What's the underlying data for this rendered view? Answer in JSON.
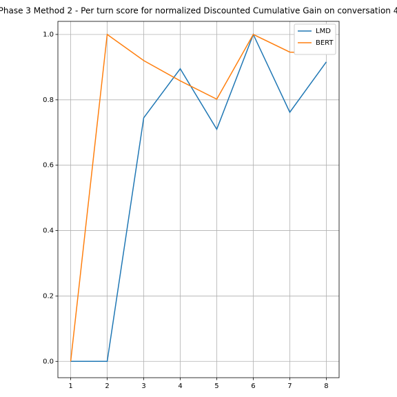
{
  "chart_data": {
    "type": "line",
    "title": "Phase 3 Method 2 - Per turn score for normalized Discounted Cumulative Gain on conversation 4",
    "x": [
      1,
      2,
      3,
      4,
      5,
      6,
      7,
      8
    ],
    "series": [
      {
        "name": "LMD",
        "color": "#1f77b4",
        "values": [
          0,
          0,
          0.745,
          0.895,
          0.71,
          1.0,
          0.762,
          0.916
        ]
      },
      {
        "name": "BERT",
        "color": "#ff7f0e",
        "values": [
          0,
          1.0,
          0.92,
          0.858,
          0.802,
          1.0,
          0.946,
          0.942
        ]
      }
    ],
    "xlim": [
      0.65,
      8.35
    ],
    "ylim": [
      -0.05,
      1.04
    ],
    "xticks": [
      1,
      2,
      3,
      4,
      5,
      6,
      7,
      8
    ],
    "yticks": [
      {
        "value": 0,
        "label": "0.0"
      },
      {
        "value": 0.2,
        "label": "0.2"
      },
      {
        "value": 0.4,
        "label": "0.4"
      },
      {
        "value": 0.6,
        "label": "0.6"
      },
      {
        "value": 0.8,
        "label": "0.8"
      },
      {
        "value": 1.0,
        "label": "1.0"
      }
    ],
    "grid": true,
    "legend": "upper-right"
  }
}
